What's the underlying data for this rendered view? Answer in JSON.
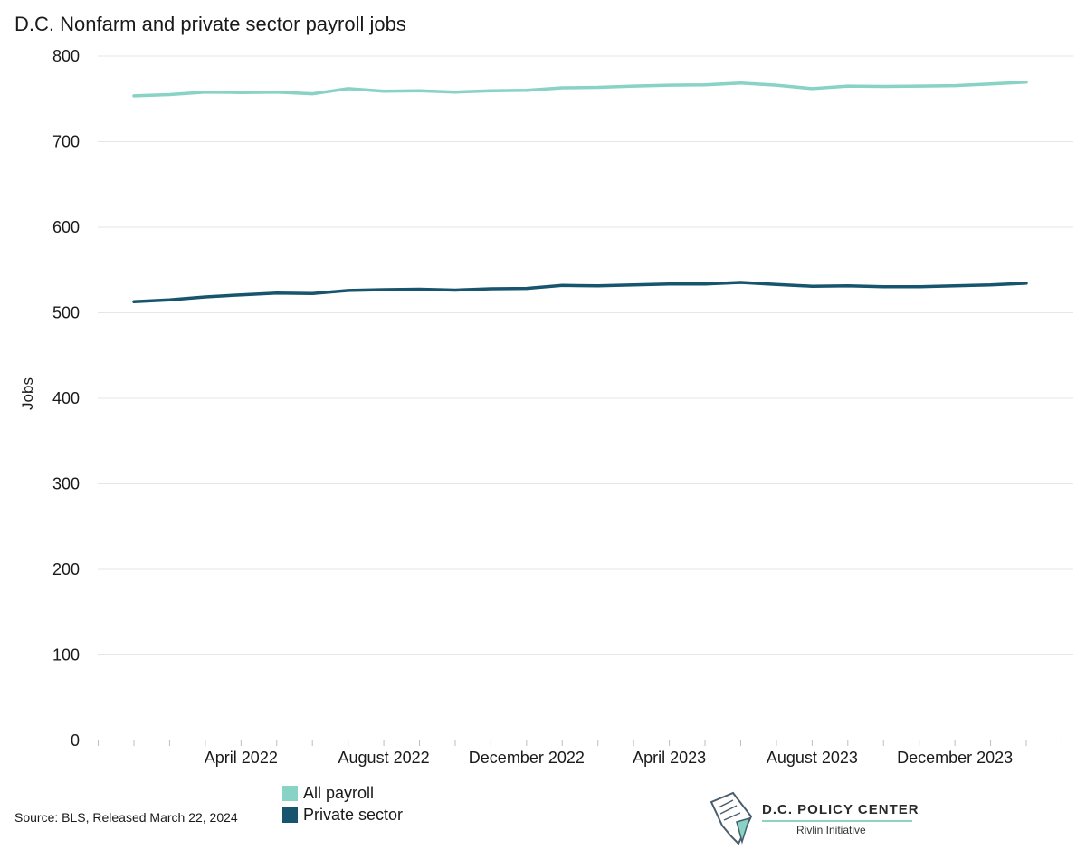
{
  "title": "D.C. Nonfarm and private sector payroll jobs",
  "source": "Source: BLS, Released March 22, 2024",
  "logo": {
    "name": "D.C. POLICY CENTER",
    "subtitle": "Rivlin Initiative",
    "icon": "dc-map-document-icon"
  },
  "colors": {
    "all_payroll": "#88d2c6",
    "private_sector": "#17546e",
    "gridline": "#e6e6e6",
    "tick": "#bdbdbd"
  },
  "chart_data": {
    "type": "line",
    "title": "D.C. Nonfarm and private sector payroll jobs",
    "xlabel": "",
    "ylabel": "Jobs",
    "ylim": [
      0,
      800
    ],
    "yticks": [
      0,
      100,
      200,
      300,
      400,
      500,
      600,
      700,
      800
    ],
    "grid": true,
    "legend_position": "bottom",
    "x": [
      "January 2022",
      "February 2022",
      "March 2022",
      "April 2022",
      "May 2022",
      "June 2022",
      "July 2022",
      "August 2022",
      "September 2022",
      "October 2022",
      "November 2022",
      "December 2022",
      "January 2023",
      "February 2023",
      "March 2023",
      "April 2023",
      "May 2023",
      "June 2023",
      "July 2023",
      "August 2023",
      "September 2023",
      "October 2023",
      "November 2023",
      "December 2023",
      "January 2024",
      "February 2024"
    ],
    "xtick_labels": [
      {
        "index": 3,
        "label": "April 2022"
      },
      {
        "index": 7,
        "label": "August 2022"
      },
      {
        "index": 11,
        "label": "December 2022"
      },
      {
        "index": 15,
        "label": "April 2023"
      },
      {
        "index": 19,
        "label": "August 2023"
      },
      {
        "index": 23,
        "label": "December 2023"
      }
    ],
    "series": [
      {
        "name": "All payroll",
        "color": "#88d2c6",
        "values": [
          753.5,
          755,
          758,
          757.5,
          758,
          756,
          762,
          759,
          759.5,
          758,
          759.5,
          760,
          763,
          763.5,
          765,
          766,
          766.5,
          768.5,
          766,
          762,
          765,
          764.5,
          765,
          765.5,
          767.5,
          769.5
        ]
      },
      {
        "name": "Private sector",
        "color": "#17546e",
        "values": [
          513,
          515,
          518.5,
          521,
          523,
          522.5,
          526,
          527,
          527.5,
          526.5,
          528,
          528.5,
          532,
          531.5,
          532.5,
          533.5,
          533.5,
          535.5,
          533,
          531,
          531.5,
          530.5,
          530.5,
          531.5,
          532.5,
          534.5
        ]
      }
    ]
  }
}
